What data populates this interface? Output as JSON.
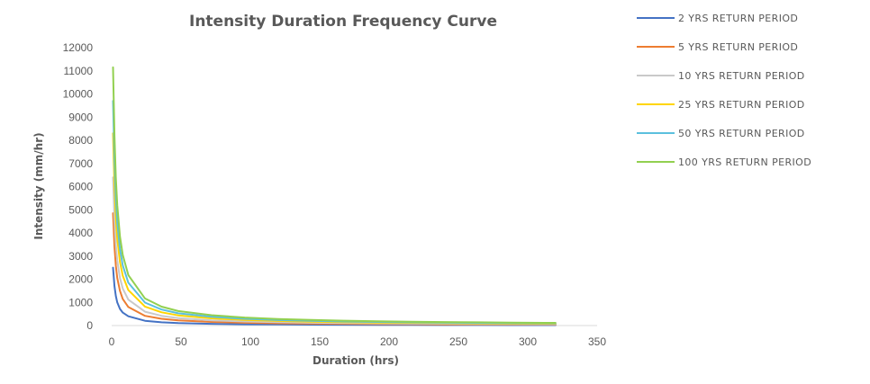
{
  "chart_data": {
    "type": "line",
    "title": "Intensity Duration Frequency Curve",
    "xlabel": "Duration (hrs)",
    "ylabel": "Intensity (mm/hr)",
    "xlim": [
      0,
      350
    ],
    "ylim": [
      0,
      12000
    ],
    "x_ticks": [
      "0",
      "50",
      "100",
      "150",
      "200",
      "250",
      "300",
      "350"
    ],
    "y_ticks": [
      "0",
      "1000",
      "2000",
      "3000",
      "4000",
      "5000",
      "6000",
      "7000",
      "8000",
      "9000",
      "10000",
      "11000",
      "12000"
    ],
    "grid": false,
    "legend_position": "right",
    "x": [
      1,
      2,
      3,
      4,
      6,
      8,
      12,
      24,
      36,
      48,
      72,
      96,
      120,
      144,
      168,
      192,
      216,
      240,
      264,
      288,
      312,
      320
    ],
    "series": [
      {
        "name": "2 YRS RETURN PERIOD",
        "color": "#4472C4",
        "values": [
          2500,
          1700,
          1280,
          1000,
          720,
          560,
          400,
          205,
          140,
          105,
          72,
          56,
          46,
          39,
          34,
          30,
          27,
          25,
          23,
          21,
          20,
          19
        ]
      },
      {
        "name": "5 YRS RETURN PERIOD",
        "color": "#ED7D31",
        "values": [
          4850,
          3400,
          2600,
          2050,
          1500,
          1150,
          800,
          420,
          290,
          220,
          155,
          120,
          98,
          83,
          72,
          64,
          57,
          52,
          48,
          44,
          41,
          40
        ]
      },
      {
        "name": "10 YRS RETURN PERIOD",
        "color": "#C9C9C9",
        "values": [
          6400,
          4600,
          3500,
          2800,
          2050,
          1600,
          1120,
          600,
          420,
          320,
          225,
          175,
          143,
          121,
          105,
          93,
          83,
          76,
          70,
          64,
          60,
          58
        ]
      },
      {
        "name": "25 YRS RETURN PERIOD",
        "color": "#FFD500",
        "values": [
          8300,
          6000,
          4650,
          3750,
          2750,
          2150,
          1530,
          820,
          570,
          440,
          310,
          240,
          197,
          167,
          145,
          128,
          115,
          104,
          96,
          89,
          83,
          81
        ]
      },
      {
        "name": "50 YRS RETURN PERIOD",
        "color": "#5BC0DE",
        "values": [
          9700,
          7100,
          5500,
          4450,
          3300,
          2600,
          1850,
          990,
          690,
          530,
          375,
          290,
          238,
          202,
          176,
          156,
          140,
          127,
          116,
          107,
          100,
          98
        ]
      },
      {
        "name": "100 YRS RETURN PERIOD",
        "color": "#92D050",
        "values": [
          11150,
          8200,
          6400,
          5200,
          3850,
          3050,
          2180,
          1170,
          815,
          627,
          445,
          345,
          283,
          240,
          209,
          185,
          166,
          151,
          138,
          127,
          118,
          116
        ]
      }
    ]
  }
}
